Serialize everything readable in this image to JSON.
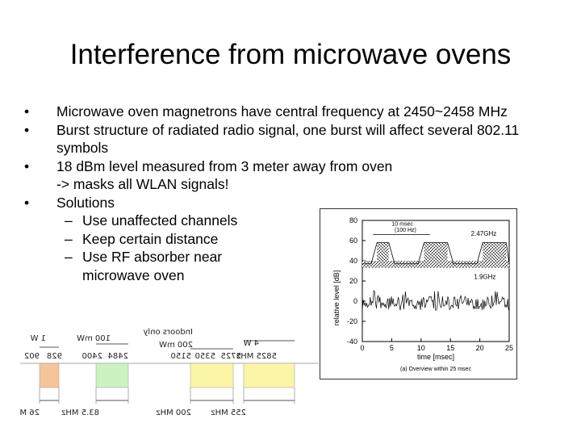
{
  "slide": {
    "title": "Interference from microwave ovens",
    "bullets": [
      {
        "text": "Microwave oven magnetrons have central frequency at 2450~2458 MHz"
      },
      {
        "text": "Burst structure of radiated radio signal, one burst will affect several 802.11",
        "cont": "symbols"
      },
      {
        "text": "18 dBm level measured from 3 meter away from oven",
        "cont": "-> masks all WLAN signals!"
      },
      {
        "text": "Solutions"
      }
    ],
    "solutions": [
      "Use unaffected channels",
      "Keep certain distance",
      "Use RF absorber near",
      "microwave oven"
    ]
  },
  "spectrum_figure": {
    "freq_labels": [
      "902",
      "928",
      "2400",
      "2484",
      "5150",
      "5350",
      "5725",
      "5825 MHz"
    ],
    "power_labels": [
      "1 W",
      "100 mW",
      "200 mW",
      "4 W",
      "Indoors only"
    ],
    "bandwidth_labels": [
      "26 MHz",
      "83.5 MHz",
      "200 MHz",
      "255 MHz"
    ],
    "colors": {
      "band_orange": "#f6c499",
      "band_green": "#cdf2c1",
      "band_yellow": "#fbf6a6",
      "baseline": "#aaaaaa"
    }
  },
  "chart_data": {
    "type": "line",
    "ylabel": "relative level [dB]",
    "xlabel": "time [msec]",
    "x_ticks": [
      0,
      5,
      10,
      15,
      20,
      25
    ],
    "y_ticks": [
      80,
      60,
      40,
      20,
      0,
      -20,
      -40
    ],
    "xlim": [
      0,
      25
    ],
    "ylim": [
      -40,
      80
    ],
    "annotations": [
      "10 msec",
      "(100 Hz)",
      "2.47GHz",
      "1.9GHz"
    ],
    "caption": "(a) Overview within 25 msec",
    "series": [
      {
        "name": "2.47GHz",
        "x": [
          0,
          1.5,
          2.5,
          4.5,
          5.5,
          9.5,
          10.5,
          14.5,
          15.5,
          19.5,
          20.5,
          24.5,
          25
        ],
        "y": [
          37,
          37,
          58,
          58,
          37,
          37,
          58,
          58,
          37,
          37,
          58,
          58,
          37
        ]
      },
      {
        "name": "1.9GHz",
        "x": [
          0,
          25
        ],
        "y": [
          -3,
          -3
        ]
      }
    ]
  }
}
